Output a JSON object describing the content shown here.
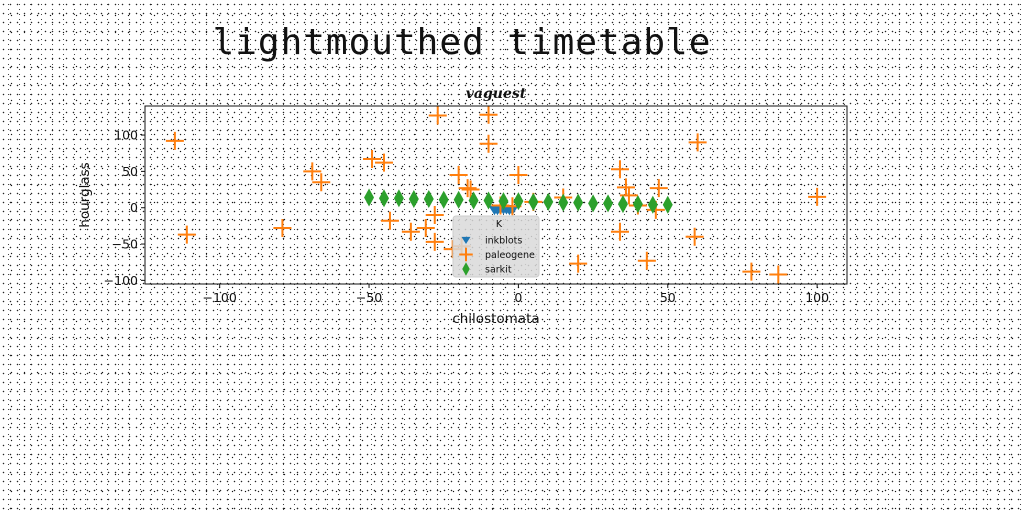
{
  "page": {
    "title": "lightmouthed timetable"
  },
  "chart_data": {
    "type": "scatter",
    "title": "vaguest",
    "xlabel": "chilostomata",
    "ylabel": "hourglass",
    "xlim": [
      -125,
      110
    ],
    "ylim": [
      -105,
      140
    ],
    "xticks": [
      -100,
      -50,
      0,
      50,
      100
    ],
    "xtick_labels": [
      "−100",
      "−50",
      "0",
      "50",
      "100"
    ],
    "yticks": [
      -100,
      -50,
      0,
      50,
      100
    ],
    "ytick_labels": [
      "−100",
      "−50",
      "0",
      "50",
      "100"
    ],
    "grid": false,
    "legend": {
      "title": "K",
      "placement": "bottom-center"
    },
    "series": [
      {
        "name": "inkblots",
        "marker": "triangle-down",
        "color": "#1f77b4",
        "x": [
          -8,
          -7,
          -6,
          -5,
          -4,
          -3,
          -2
        ],
        "y": [
          -3,
          -3,
          -2,
          -2,
          -2,
          -3,
          -3
        ]
      },
      {
        "name": "paleogene",
        "marker": "plus",
        "color": "#ff7f0e",
        "x": [
          -115,
          -111,
          -79,
          -69,
          -66,
          -49,
          -45,
          -20,
          -17,
          -10,
          -10,
          0,
          -43,
          -36,
          -31,
          -28,
          -28,
          -27,
          -22,
          -16,
          34,
          36,
          37,
          40,
          34,
          47,
          60,
          59,
          43,
          20,
          78,
          87,
          100,
          -19,
          -6,
          5,
          15,
          46,
          -2
        ],
        "y": [
          92,
          -37,
          -28,
          50,
          35,
          67,
          62,
          45,
          27,
          128,
          88,
          45,
          -18,
          -33,
          -28,
          -47,
          -10,
          127,
          -57,
          25,
          53,
          28,
          17,
          3,
          -33,
          27,
          90,
          -40,
          -73,
          -77,
          -88,
          -92,
          15,
          -53,
          3,
          8,
          14,
          -3,
          2
        ]
      },
      {
        "name": "sarkit",
        "marker": "thin-diamond",
        "color": "#2ca02c",
        "x": [
          -50,
          -45,
          -40,
          -35,
          -30,
          -25,
          -20,
          -15,
          -10,
          -5,
          0,
          5,
          10,
          15,
          20,
          25,
          30,
          35,
          40,
          45,
          50
        ],
        "y": [
          14,
          13,
          13,
          12,
          12,
          11,
          11,
          10,
          10,
          9,
          9,
          8,
          8,
          7,
          7,
          6,
          6,
          5,
          5,
          4,
          4
        ]
      }
    ]
  }
}
